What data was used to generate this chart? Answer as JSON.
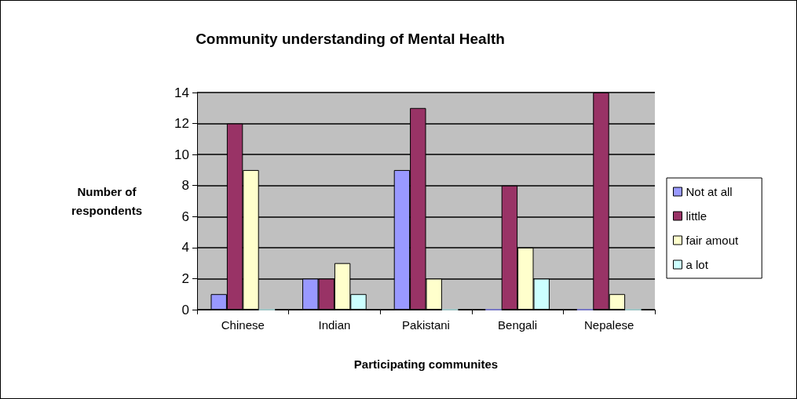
{
  "chart_data": {
    "type": "bar",
    "title": "Community understanding of Mental Health",
    "xlabel": "Participating communites",
    "ylabel": "Number of respondents",
    "categories": [
      "Chinese",
      "Indian",
      "Pakistani",
      "Bengali",
      "Nepalese"
    ],
    "series": [
      {
        "name": "Not at all",
        "color": "#9999ff",
        "values": [
          1,
          2,
          9,
          0,
          0
        ]
      },
      {
        "name": "little",
        "color": "#993366",
        "values": [
          12,
          2,
          13,
          8,
          14
        ]
      },
      {
        "name": "fair amout",
        "color": "#ffffcc",
        "values": [
          9,
          3,
          2,
          4,
          1
        ]
      },
      {
        "name": "a lot",
        "color": "#ccffff",
        "values": [
          0,
          1,
          0,
          2,
          0
        ]
      }
    ],
    "ylim": [
      0,
      14
    ],
    "yticks": [
      0,
      2,
      4,
      6,
      8,
      10,
      12,
      14
    ],
    "grid": "y",
    "legend": "right"
  }
}
